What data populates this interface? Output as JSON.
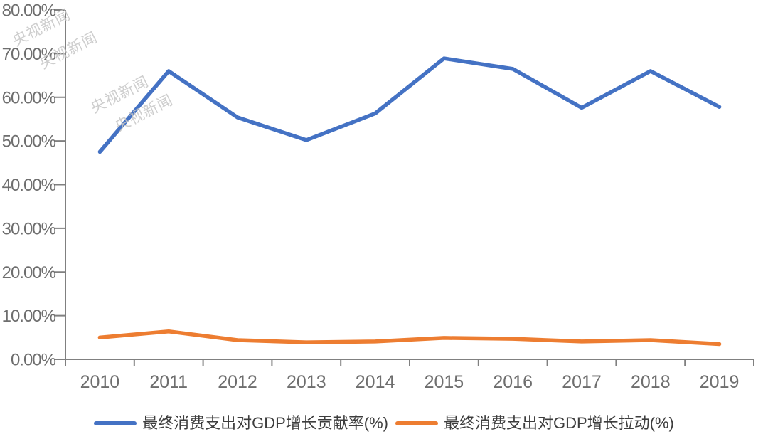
{
  "watermark": {
    "text": "央视新闻",
    "color": "#c6c6c6"
  },
  "chart_data": {
    "type": "line",
    "title": "",
    "xlabel": "",
    "ylabel": "",
    "categories": [
      "2010",
      "2011",
      "2012",
      "2013",
      "2014",
      "2015",
      "2016",
      "2017",
      "2018",
      "2019"
    ],
    "series": [
      {
        "name": "最终消费支出对GDP增长贡献率(%)",
        "color": "#4472C4",
        "values": [
          47.5,
          66.0,
          55.4,
          50.2,
          56.3,
          68.9,
          66.5,
          57.6,
          66.0,
          57.8
        ]
      },
      {
        "name": "最终消费支出对GDP增长拉动(%)",
        "color": "#ED7D31",
        "values": [
          5.0,
          6.4,
          4.4,
          3.9,
          4.1,
          4.9,
          4.7,
          4.1,
          4.4,
          3.5
        ]
      }
    ],
    "ylim": [
      0,
      80
    ],
    "y_tick_step": 10,
    "y_tick_labels": [
      "0.00%",
      "10.00%",
      "20.00%",
      "30.00%",
      "40.00%",
      "50.00%",
      "60.00%",
      "70.00%",
      "80.00%"
    ],
    "grid": false,
    "legend_position": "bottom",
    "axis_color": "#808080",
    "tick_label_color": "#6e6e6e"
  }
}
